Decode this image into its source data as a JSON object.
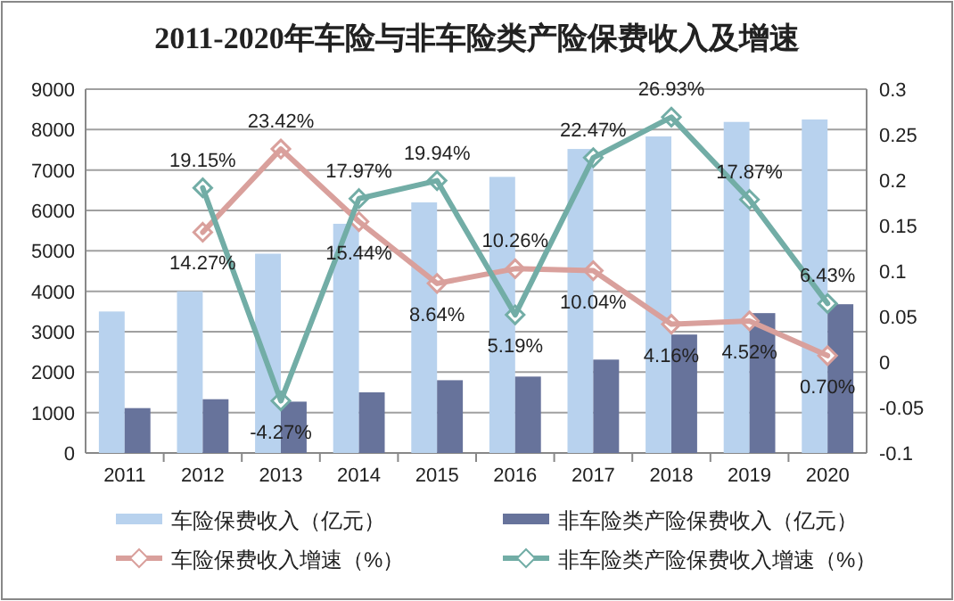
{
  "chart_data": {
    "type": "bar",
    "title": "2011-2020年车险与非车险类产险保费收入及增速",
    "categories": [
      "2011",
      "2012",
      "2013",
      "2014",
      "2015",
      "2016",
      "2017",
      "2018",
      "2019",
      "2020"
    ],
    "series": [
      {
        "name": "车险保费收入（亿元）",
        "color": "#b8d2ee",
        "values": [
          3500,
          4000,
          4930,
          5670,
          6200,
          6830,
          7520,
          7830,
          8190,
          8250
        ]
      },
      {
        "name": "非车险类产险保费收入（亿元）",
        "color": "#67739b",
        "values": [
          1110,
          1330,
          1270,
          1500,
          1800,
          1890,
          2310,
          2930,
          3460,
          3680
        ]
      },
      {
        "name": "车险保费收入增速（%）",
        "type": "line",
        "axis": "y2",
        "color": "#d9a09c",
        "values": [
          null,
          0.1427,
          0.2342,
          0.1544,
          0.0864,
          0.1026,
          0.1004,
          0.0416,
          0.0452,
          0.007
        ],
        "value_labels": [
          null,
          "14.27%",
          "23.42%",
          "15.44%",
          "8.64%",
          "10.26%",
          "10.04%",
          "4.16%",
          "4.52%",
          "0.70%"
        ]
      },
      {
        "name": "非车险类产险保费收入增速（%）",
        "type": "line",
        "axis": "y2",
        "color": "#72ada6",
        "values": [
          null,
          0.1915,
          -0.0427,
          0.1797,
          0.1994,
          0.0519,
          0.2247,
          0.2693,
          0.1787,
          0.0643
        ],
        "value_labels": [
          null,
          "19.15%",
          "-4.27%",
          "17.97%",
          "19.94%",
          "5.19%",
          "22.47%",
          "26.93%",
          "17.87%",
          "6.43%"
        ]
      }
    ],
    "ylim": [
      0,
      9000
    ],
    "yticks": [
      0,
      1000,
      2000,
      3000,
      4000,
      5000,
      6000,
      7000,
      8000,
      9000
    ],
    "y2lim": [
      -0.1,
      0.3
    ],
    "y2ticks": [
      -0.1,
      -0.05,
      0,
      0.05,
      0.1,
      0.15,
      0.2,
      0.25,
      0.3
    ],
    "grid": "y",
    "legend": "bottom",
    "marker": "diamond"
  }
}
